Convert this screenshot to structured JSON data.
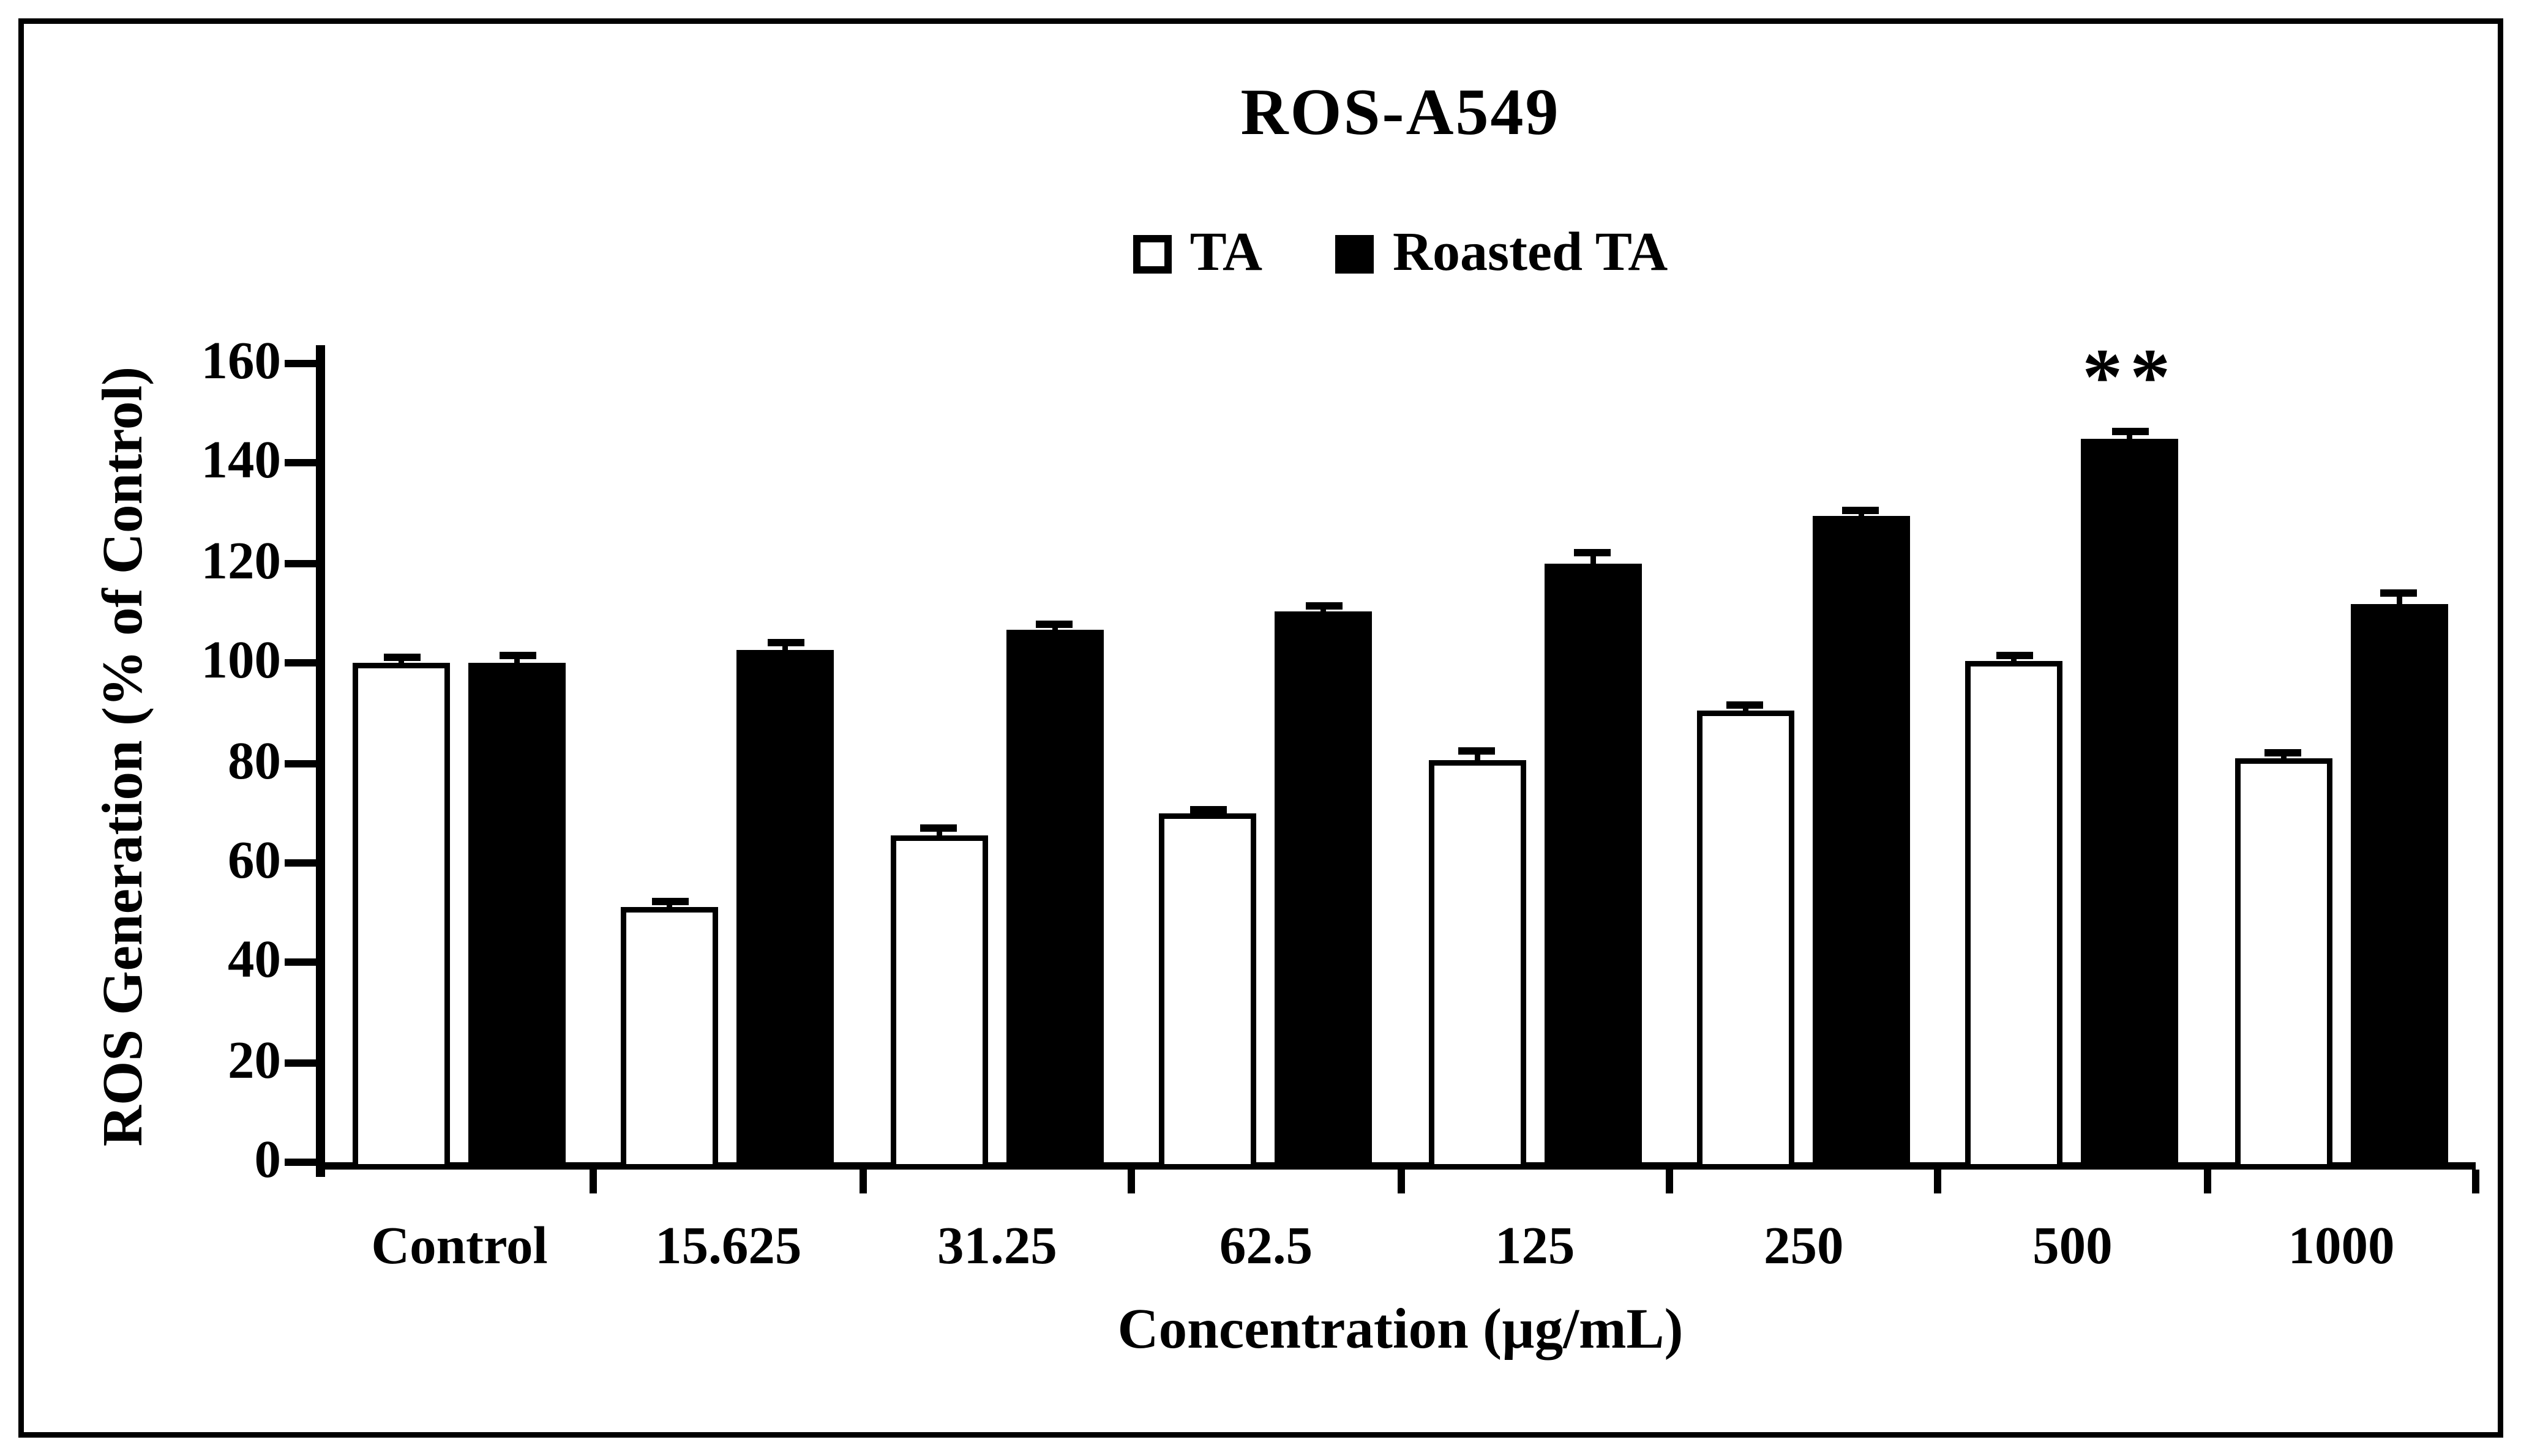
{
  "figure": {
    "background": "#ffffff",
    "border_color": "#000000"
  },
  "chart": {
    "title": "ROS-A549"
  },
  "legend": {
    "items": [
      {
        "label": "TA",
        "fill": "#ffffff"
      },
      {
        "label": "Roasted TA",
        "fill": "#000000"
      }
    ]
  },
  "axes": {
    "y_title": "ROS Generation (% of Control)",
    "x_title": "Concentration (µg/mL)"
  },
  "chart_data": {
    "type": "bar",
    "title": "ROS-A549",
    "categories": [
      "Control",
      "15.625",
      "31.25",
      "62.5",
      "125",
      "250",
      "500",
      "1000"
    ],
    "series": [
      {
        "name": "TA",
        "fill": "#ffffff",
        "stroke": "#000000",
        "values": [
          100,
          51,
          65.5,
          70,
          80.5,
          90.5,
          100.5,
          81
        ],
        "errors": [
          1,
          1.2,
          1.5,
          0.6,
          2,
          1.2,
          1,
          1.2
        ]
      },
      {
        "name": "Roasted TA",
        "fill": "#000000",
        "stroke": "#000000",
        "values": [
          100,
          102.5,
          106.5,
          110.5,
          120,
          129.5,
          145,
          112
        ],
        "errors": [
          1.5,
          1.5,
          1.2,
          1,
          2.2,
          1,
          1.5,
          2
        ]
      }
    ],
    "ylabel": "ROS Generation (% of Control)",
    "xlabel": "Concentration (µg/mL)",
    "ylim": [
      0,
      160
    ],
    "ytick_step": 20,
    "yticks": [
      0,
      20,
      40,
      60,
      80,
      100,
      120,
      140,
      160
    ],
    "grid": false,
    "legend_position": "top-center",
    "annotation": {
      "text": "**",
      "category_index": 6,
      "series_index": 1
    }
  }
}
